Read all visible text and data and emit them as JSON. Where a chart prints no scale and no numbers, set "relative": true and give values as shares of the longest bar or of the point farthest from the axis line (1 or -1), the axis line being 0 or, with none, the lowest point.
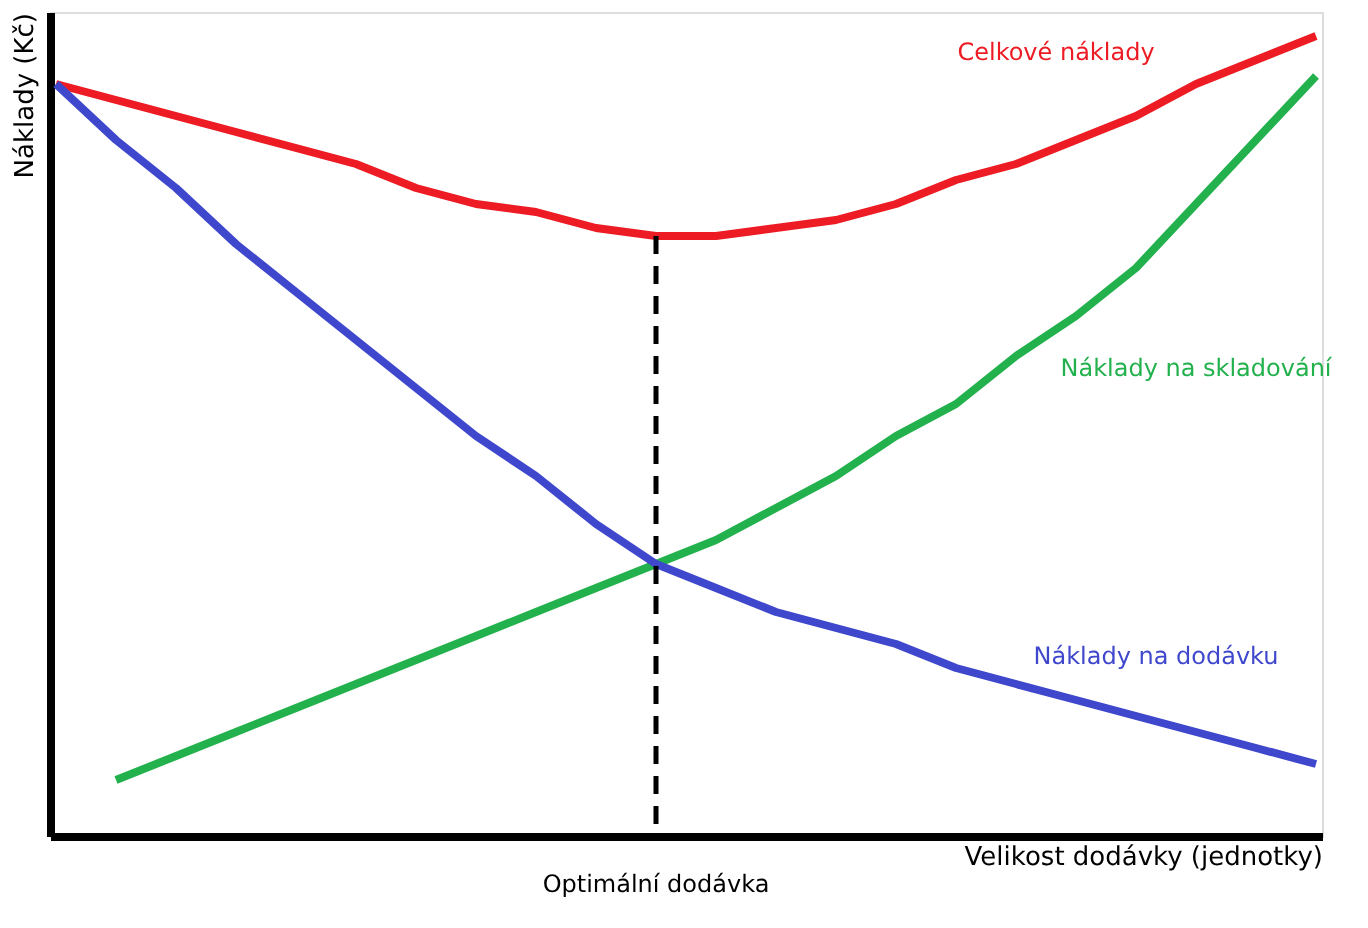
{
  "chart_data": {
    "type": "line",
    "relative": true,
    "xlabel": "Velikost dodávky (jednotky)",
    "ylabel": "Náklady (Kč)",
    "categories": [
      null,
      null,
      null,
      null,
      null,
      null,
      null,
      null,
      null,
      null,
      null,
      null,
      null,
      null,
      null,
      null,
      null,
      null,
      null,
      null,
      null,
      null
    ],
    "series": [
      {
        "name": "Celkové náklady",
        "color": "#ed1c24",
        "values": [
          0.94,
          0.92,
          0.9,
          0.88,
          0.86,
          0.84,
          0.81,
          0.79,
          0.78,
          0.76,
          0.75,
          0.75,
          0.76,
          0.77,
          0.79,
          0.82,
          0.84,
          0.87,
          0.9,
          0.94,
          0.97,
          1.0
        ]
      },
      {
        "name": "Náklady na skladování",
        "color": "#22b14c",
        "values": [
          null,
          0.07,
          0.1,
          0.13,
          0.16,
          0.19,
          0.22,
          0.25,
          0.28,
          0.31,
          0.34,
          0.37,
          0.41,
          0.45,
          0.5,
          0.54,
          0.6,
          0.65,
          0.71,
          0.79,
          0.87,
          0.95
        ]
      },
      {
        "name": "Náklady na dodávku",
        "color": "#3f48cc",
        "values": [
          0.94,
          0.87,
          0.81,
          0.74,
          0.68,
          0.62,
          0.56,
          0.5,
          0.45,
          0.39,
          0.34,
          0.31,
          0.28,
          0.26,
          0.24,
          0.21,
          0.19,
          0.17,
          0.15,
          0.13,
          0.11,
          0.09
        ]
      }
    ],
    "annotations": [
      "Optimální dodávka"
    ],
    "legend": false,
    "grid": false,
    "marker": "none",
    "line_style": "solid"
  }
}
